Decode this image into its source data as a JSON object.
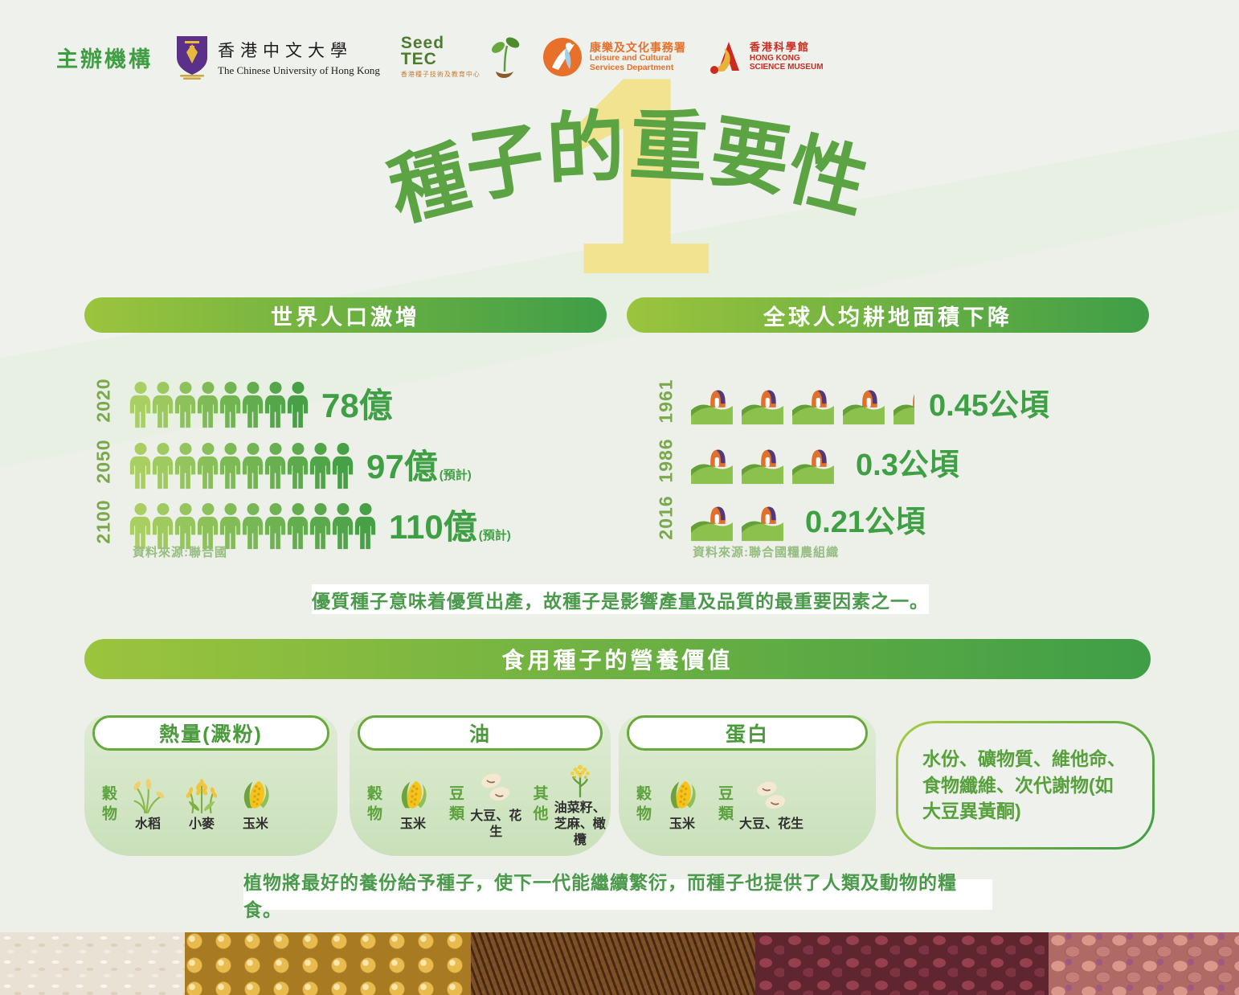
{
  "theme": {
    "accent_green": "#43a047",
    "pill_gradient_start": "#9cc43d",
    "pill_gradient_end": "#3f9e47",
    "title_green": "#5ca344",
    "badge_yellow": "#f2e391",
    "value_green": "#3f9f45",
    "year_green": "#79a94c",
    "source_green": "#97bd82",
    "card_border_green": "#68a93c",
    "banner_text_green": "#4b9a4c",
    "lcsd_orange": "#e8702a",
    "hksm_red": "#cc2b20",
    "cuhk_purple": "#5b3089"
  },
  "header": {
    "organizer_label": "主辦機構",
    "logos": {
      "cuhk": {
        "icon": "cuhk-emblem",
        "name_zh": "香港中文大學",
        "name_en": "The Chinese University of Hong Kong"
      },
      "seedtec": {
        "icon": "sprout",
        "word1": "Seed",
        "word2": "TEC",
        "subtitle": "香港種子技術及教育中心"
      },
      "lcsd": {
        "icon": "lcsd-dancer",
        "name_zh": "康樂及文化事務署",
        "name_en_line1": "Leisure and Cultural",
        "name_en_line2": "Services Department"
      },
      "hksm": {
        "icon": "hksm-mark",
        "name_zh": "香港科學館",
        "name_en_line1": "HONG KONG",
        "name_en_line2": "SCIENCE MUSEUM"
      }
    }
  },
  "title": {
    "text": "種子的重要性",
    "chars": [
      "種",
      "子",
      "的",
      "重",
      "要",
      "性"
    ],
    "badge_number": "1"
  },
  "population": {
    "header": "世界人口激增",
    "icon": "person",
    "icon_color_start": "#a9cf63",
    "icon_color_end": "#479f46",
    "rows": [
      {
        "year": "2020",
        "count": 8,
        "value": "78億",
        "note": ""
      },
      {
        "year": "2050",
        "count": 10,
        "value": "97億",
        "note": "(預計)"
      },
      {
        "year": "2100",
        "count": 11,
        "value": "110億",
        "note": "(預計)"
      }
    ],
    "source": "資料來源:聯合國"
  },
  "farmland": {
    "header": "全球人均耕地面積下降",
    "icon": "farm",
    "rows": [
      {
        "year": "1961",
        "count": 4.5,
        "value": "0.45公頃",
        "note": ""
      },
      {
        "year": "1986",
        "count": 3,
        "value": "0.3公頃",
        "note": ""
      },
      {
        "year": "2016",
        "count": 2,
        "value": "0.21公頃",
        "note": ""
      }
    ],
    "source": "資料來源:聯合國糧農組織"
  },
  "banners": {
    "quality": "優質種子意味着優質出產，故種子是影響產量及品質的最重要因素之一。",
    "legacy": "植物將最好的養份給予種子，使下一代能繼續繁衍，而種子也提供了人類及動物的糧食。"
  },
  "nutrition": {
    "header": "食用種子的營養價值",
    "cards": [
      {
        "title": "熱量(澱粉)",
        "groups": [
          {
            "label": "穀物",
            "items": [
              {
                "icon": "rice-plant",
                "label": "水稻"
              },
              {
                "icon": "wheat",
                "label": "小麥"
              },
              {
                "icon": "corn",
                "label": "玉米"
              }
            ]
          }
        ]
      },
      {
        "title": "油",
        "groups": [
          {
            "label": "穀物",
            "items": [
              {
                "icon": "corn",
                "label": "玉米"
              }
            ]
          },
          {
            "label": "豆類",
            "items": [
              {
                "icon": "beans",
                "label": "大豆、花生"
              }
            ]
          },
          {
            "label": "其他",
            "items": [
              {
                "icon": "rapeseed",
                "label": "油菜籽、\n芝麻、橄欖"
              }
            ]
          }
        ]
      },
      {
        "title": "蛋白",
        "groups": [
          {
            "label": "穀物",
            "items": [
              {
                "icon": "corn",
                "label": "玉米"
              }
            ]
          },
          {
            "label": "豆類",
            "items": [
              {
                "icon": "beans",
                "label": "大豆、花生"
              }
            ]
          }
        ]
      }
    ],
    "extra_box": {
      "lines": [
        "水份、礦物質、維他命、",
        "食物纖維、次代謝物(如",
        "大豆異黃酮)"
      ]
    }
  },
  "photo_strip": [
    "white-rice",
    "corn-kernels",
    "red-rice",
    "red-beans",
    "peanuts"
  ],
  "chart_data": [
    {
      "type": "pictograph-bar",
      "title": "世界人口激增",
      "categories": [
        "2020",
        "2050",
        "2100"
      ],
      "values": [
        78,
        97,
        110
      ],
      "unit": "億",
      "value_labels": [
        "78億",
        "97億(預計)",
        "110億(預計)"
      ],
      "icon": "person",
      "icons_per_row": [
        8,
        10,
        11
      ],
      "icon_unit": "約10億/圖示",
      "source": "資料來源:聯合國"
    },
    {
      "type": "pictograph-bar",
      "title": "全球人均耕地面積下降",
      "categories": [
        "1961",
        "1986",
        "2016"
      ],
      "values": [
        0.45,
        0.3,
        0.21
      ],
      "unit": "公頃",
      "value_labels": [
        "0.45公頃",
        "0.3公頃",
        "0.21公頃"
      ],
      "icon": "farm-field",
      "icons_per_row": [
        4.5,
        3,
        2
      ],
      "icon_unit": "0.1公頃/圖示",
      "source": "資料來源:聯合國糧農組織"
    }
  ]
}
